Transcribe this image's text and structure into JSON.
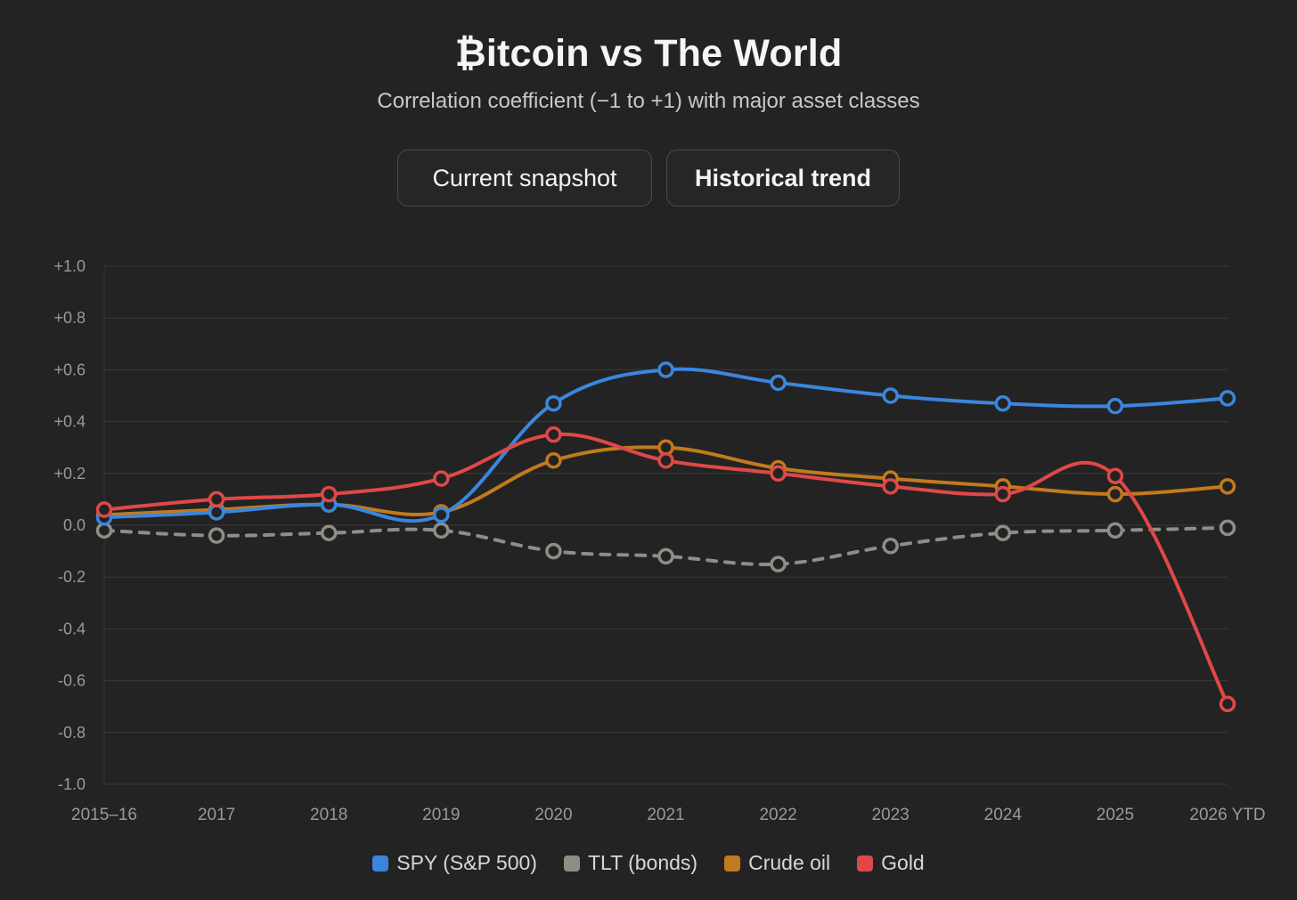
{
  "header": {
    "title": "₿itcoin vs The World",
    "subtitle": "Correlation coefficient (−1 to +1) with major asset classes"
  },
  "tabs": [
    {
      "label": "Current snapshot"
    },
    {
      "label": "Historical trend"
    }
  ],
  "chart_data": {
    "type": "line",
    "categories": [
      "2015–16",
      "2017",
      "2018",
      "2019",
      "2020",
      "2021",
      "2022",
      "2023",
      "2024",
      "2025",
      "2026 YTD"
    ],
    "ylim": [
      -1.0,
      1.0
    ],
    "yticks": [
      1.0,
      0.8,
      0.6,
      0.4,
      0.2,
      0.0,
      -0.2,
      -0.4,
      -0.6,
      -0.8,
      -1.0
    ],
    "ytick_labels": [
      "+1.0",
      "+0.8",
      "+0.6",
      "+0.4",
      "+0.2",
      "0.0",
      "-0.2",
      "-0.4",
      "-0.6",
      "-0.8",
      "-1.0"
    ],
    "grid": true,
    "legend_position": "bottom-center",
    "series": [
      {
        "name": "SPY (S&P 500)",
        "color": "#3b86dd",
        "dashed": false,
        "values": [
          0.03,
          0.05,
          0.08,
          0.04,
          0.47,
          0.6,
          0.55,
          0.5,
          0.47,
          0.46,
          0.49
        ]
      },
      {
        "name": "TLT (bonds)",
        "color": "#8e8d86",
        "dashed": true,
        "values": [
          -0.02,
          -0.04,
          -0.03,
          -0.02,
          -0.1,
          -0.12,
          -0.15,
          -0.08,
          -0.03,
          -0.02,
          -0.01
        ]
      },
      {
        "name": "Crude oil",
        "color": "#c27a1c",
        "dashed": false,
        "values": [
          0.04,
          0.06,
          0.08,
          0.05,
          0.25,
          0.3,
          0.22,
          0.18,
          0.15,
          0.12,
          0.15
        ]
      },
      {
        "name": "Gold",
        "color": "#e04848",
        "dashed": false,
        "values": [
          0.06,
          0.1,
          0.12,
          0.18,
          0.35,
          0.25,
          0.2,
          0.15,
          0.12,
          0.19,
          -0.69
        ]
      }
    ],
    "draw_order": [
      1,
      2,
      0,
      3
    ]
  }
}
